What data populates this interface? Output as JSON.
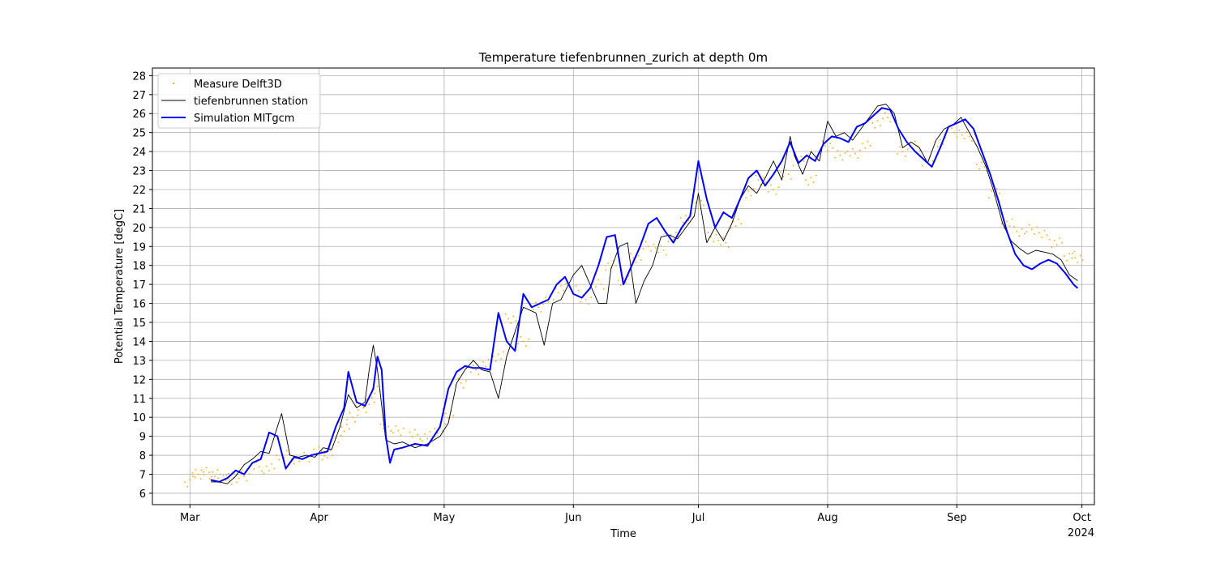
{
  "chart_data": {
    "type": "line",
    "title": "Temperature tiefenbrunnen_zurich at depth 0m",
    "xlabel": "Time",
    "ylabel": "Potential Temperature [degC]",
    "year_label": "2024",
    "x_range": [
      "2024-02-21",
      "2024-10-04"
    ],
    "ylim": [
      5.4,
      28.4
    ],
    "y_ticks": [
      6,
      7,
      8,
      9,
      10,
      11,
      12,
      13,
      14,
      15,
      16,
      17,
      18,
      19,
      20,
      21,
      22,
      23,
      24,
      25,
      26,
      27,
      28
    ],
    "x_ticks": [
      {
        "label": "Mar",
        "date": "2024-03-01"
      },
      {
        "label": "Apr",
        "date": "2024-04-01"
      },
      {
        "label": "May",
        "date": "2024-05-01"
      },
      {
        "label": "Jun",
        "date": "2024-06-01"
      },
      {
        "label": "Jul",
        "date": "2024-07-01"
      },
      {
        "label": "Aug",
        "date": "2024-08-01"
      },
      {
        "label": "Sep",
        "date": "2024-09-01"
      },
      {
        "label": "Oct",
        "date": "2024-10-01"
      }
    ],
    "grid": true,
    "legend_position": "top-left",
    "series": [
      {
        "name": "Measure Delft3D",
        "style": "points",
        "color": "#ffa500",
        "x": [
          "2024-03-01",
          "2024-03-03",
          "2024-03-05",
          "2024-03-07",
          "2024-03-09",
          "2024-03-11",
          "2024-03-14",
          "2024-03-17",
          "2024-03-20",
          "2024-03-23",
          "2024-03-26",
          "2024-03-29",
          "2024-04-01",
          "2024-04-03",
          "2024-04-05",
          "2024-04-07",
          "2024-04-09",
          "2024-04-11",
          "2024-04-13",
          "2024-04-15",
          "2024-04-17",
          "2024-04-20",
          "2024-04-24",
          "2024-04-27",
          "2024-04-30",
          "2024-05-02",
          "2024-05-05",
          "2024-05-08",
          "2024-05-11",
          "2024-05-14",
          "2024-05-17",
          "2024-05-20",
          "2024-05-23",
          "2024-05-26",
          "2024-05-29",
          "2024-06-01",
          "2024-06-04",
          "2024-06-07",
          "2024-06-10",
          "2024-06-13",
          "2024-06-16",
          "2024-06-19",
          "2024-06-22",
          "2024-06-25",
          "2024-06-28",
          "2024-07-01",
          "2024-07-04",
          "2024-07-07",
          "2024-07-10",
          "2024-07-13",
          "2024-07-16",
          "2024-07-19",
          "2024-07-22",
          "2024-07-25",
          "2024-07-28",
          "2024-08-01",
          "2024-08-04",
          "2024-08-07",
          "2024-08-10",
          "2024-08-13",
          "2024-08-16",
          "2024-08-19",
          "2024-08-22",
          "2024-08-25",
          "2024-08-28",
          "2024-09-01",
          "2024-09-04",
          "2024-09-07",
          "2024-09-10",
          "2024-09-13",
          "2024-09-16",
          "2024-09-19",
          "2024-09-22",
          "2024-09-25",
          "2024-09-28",
          "2024-09-30"
        ],
        "y": [
          6.95,
          7.0,
          7.1,
          7.0,
          6.8,
          6.7,
          6.9,
          7.4,
          7.3,
          8.0,
          7.8,
          7.9,
          8.2,
          8.0,
          8.8,
          9.5,
          10.0,
          10.5,
          10.8,
          11.5,
          9.4,
          9.3,
          9.1,
          9.0,
          9.4,
          10.2,
          11.8,
          12.5,
          12.8,
          13.2,
          15.2,
          14.0,
          15.8,
          16.2,
          16.8,
          16.8,
          16.2,
          17.0,
          18.0,
          17.2,
          18.4,
          19.0,
          18.8,
          19.5,
          20.5,
          21.3,
          19.5,
          19.2,
          20.2,
          21.8,
          22.5,
          22.0,
          22.8,
          23.5,
          22.5,
          24.3,
          23.8,
          23.9,
          24.3,
          25.5,
          25.8,
          24.0,
          24.3,
          23.5,
          24.5,
          25.0,
          24.8,
          23.2,
          21.8,
          20.2,
          19.8,
          19.9,
          19.6,
          19.2,
          18.5,
          18.4
        ]
      },
      {
        "name": "tiefenbrunnen station",
        "style": "line-thin",
        "color": "#000000",
        "x": [
          "2024-03-06",
          "2024-03-08",
          "2024-03-10",
          "2024-03-12",
          "2024-03-14",
          "2024-03-16",
          "2024-03-18",
          "2024-03-20",
          "2024-03-22",
          "2024-03-23",
          "2024-03-25",
          "2024-03-27",
          "2024-03-29",
          "2024-03-31",
          "2024-04-02",
          "2024-04-04",
          "2024-04-06",
          "2024-04-08",
          "2024-04-10",
          "2024-04-12",
          "2024-04-13",
          "2024-04-14",
          "2024-04-15",
          "2024-04-17",
          "2024-04-19",
          "2024-04-21",
          "2024-04-24",
          "2024-04-27",
          "2024-04-30",
          "2024-05-02",
          "2024-05-04",
          "2024-05-06",
          "2024-05-08",
          "2024-05-10",
          "2024-05-12",
          "2024-05-14",
          "2024-05-16",
          "2024-05-18",
          "2024-05-20",
          "2024-05-23",
          "2024-05-25",
          "2024-05-27",
          "2024-05-29",
          "2024-06-01",
          "2024-06-03",
          "2024-06-05",
          "2024-06-07",
          "2024-06-09",
          "2024-06-10",
          "2024-06-12",
          "2024-06-14",
          "2024-06-16",
          "2024-06-18",
          "2024-06-20",
          "2024-06-22",
          "2024-06-24",
          "2024-06-26",
          "2024-06-28",
          "2024-06-30",
          "2024-07-01",
          "2024-07-03",
          "2024-07-05",
          "2024-07-07",
          "2024-07-09",
          "2024-07-11",
          "2024-07-13",
          "2024-07-15",
          "2024-07-17",
          "2024-07-19",
          "2024-07-21",
          "2024-07-23",
          "2024-07-24",
          "2024-07-26",
          "2024-07-28",
          "2024-07-30",
          "2024-08-01",
          "2024-08-03",
          "2024-08-05",
          "2024-08-07",
          "2024-08-09",
          "2024-08-11",
          "2024-08-13",
          "2024-08-15",
          "2024-08-17",
          "2024-08-19",
          "2024-08-21",
          "2024-08-23",
          "2024-08-25",
          "2024-08-27",
          "2024-08-29",
          "2024-08-31",
          "2024-09-02",
          "2024-09-04",
          "2024-09-06",
          "2024-09-08",
          "2024-09-10",
          "2024-09-12",
          "2024-09-14",
          "2024-09-16",
          "2024-09-18",
          "2024-09-20",
          "2024-09-22",
          "2024-09-24",
          "2024-09-26",
          "2024-09-28",
          "2024-09-30"
        ],
        "y": [
          6.6,
          6.6,
          6.5,
          6.9,
          7.5,
          7.8,
          8.2,
          8.1,
          9.5,
          10.2,
          8.0,
          7.9,
          8.0,
          7.9,
          8.4,
          8.3,
          9.5,
          11.2,
          10.5,
          10.8,
          12.5,
          13.8,
          12.5,
          8.8,
          8.6,
          8.7,
          8.4,
          8.6,
          9.0,
          9.7,
          11.8,
          12.5,
          13.0,
          12.5,
          12.4,
          11.0,
          13.2,
          14.5,
          15.8,
          15.5,
          13.8,
          16.0,
          16.2,
          17.5,
          18.0,
          17.0,
          16.0,
          16.0,
          17.8,
          19.0,
          19.2,
          16.0,
          17.2,
          18.0,
          19.5,
          19.6,
          19.4,
          20.0,
          20.6,
          21.8,
          19.2,
          20.0,
          19.3,
          20.2,
          21.5,
          22.2,
          21.8,
          22.6,
          23.5,
          22.5,
          24.8,
          23.8,
          22.8,
          24.0,
          23.5,
          25.6,
          24.8,
          25.0,
          24.6,
          25.2,
          25.8,
          26.4,
          26.5,
          26.0,
          24.2,
          24.5,
          24.2,
          23.4,
          24.6,
          25.2,
          25.4,
          25.8,
          25.0,
          24.2,
          23.2,
          21.8,
          20.2,
          19.3,
          18.9,
          18.6,
          18.8,
          18.7,
          18.6,
          18.3,
          17.5,
          17.2
        ]
      },
      {
        "name": "Simulation MITgcm",
        "style": "line-thick",
        "color": "#0000ff",
        "x": [
          "2024-03-06",
          "2024-03-08",
          "2024-03-10",
          "2024-03-12",
          "2024-03-14",
          "2024-03-16",
          "2024-03-18",
          "2024-03-20",
          "2024-03-22",
          "2024-03-24",
          "2024-03-26",
          "2024-03-28",
          "2024-03-30",
          "2024-04-01",
          "2024-04-03",
          "2024-04-05",
          "2024-04-07",
          "2024-04-08",
          "2024-04-10",
          "2024-04-12",
          "2024-04-14",
          "2024-04-15",
          "2024-04-16",
          "2024-04-17",
          "2024-04-18",
          "2024-04-19",
          "2024-04-21",
          "2024-04-24",
          "2024-04-27",
          "2024-04-30",
          "2024-05-02",
          "2024-05-04",
          "2024-05-06",
          "2024-05-08",
          "2024-05-10",
          "2024-05-12",
          "2024-05-14",
          "2024-05-16",
          "2024-05-18",
          "2024-05-20",
          "2024-05-22",
          "2024-05-24",
          "2024-05-26",
          "2024-05-28",
          "2024-05-30",
          "2024-06-01",
          "2024-06-03",
          "2024-06-05",
          "2024-06-07",
          "2024-06-09",
          "2024-06-11",
          "2024-06-13",
          "2024-06-15",
          "2024-06-17",
          "2024-06-19",
          "2024-06-21",
          "2024-06-23",
          "2024-06-25",
          "2024-06-27",
          "2024-06-29",
          "2024-07-01",
          "2024-07-03",
          "2024-07-05",
          "2024-07-07",
          "2024-07-09",
          "2024-07-11",
          "2024-07-13",
          "2024-07-15",
          "2024-07-17",
          "2024-07-19",
          "2024-07-21",
          "2024-07-23",
          "2024-07-25",
          "2024-07-27",
          "2024-07-29",
          "2024-07-31",
          "2024-08-02",
          "2024-08-04",
          "2024-08-06",
          "2024-08-08",
          "2024-08-10",
          "2024-08-12",
          "2024-08-14",
          "2024-08-16",
          "2024-08-18",
          "2024-08-20",
          "2024-08-22",
          "2024-08-24",
          "2024-08-26",
          "2024-08-28",
          "2024-08-30",
          "2024-09-01",
          "2024-09-03",
          "2024-09-05",
          "2024-09-07",
          "2024-09-09",
          "2024-09-11",
          "2024-09-13",
          "2024-09-15",
          "2024-09-17",
          "2024-09-19",
          "2024-09-21",
          "2024-09-23",
          "2024-09-25",
          "2024-09-27",
          "2024-09-29",
          "2024-09-30"
        ],
        "y": [
          6.7,
          6.6,
          6.8,
          7.2,
          7.0,
          7.6,
          7.8,
          9.2,
          9.0,
          7.3,
          7.9,
          7.8,
          8.0,
          8.1,
          8.2,
          9.5,
          10.5,
          12.4,
          10.8,
          10.6,
          11.5,
          13.2,
          12.5,
          9.0,
          7.6,
          8.3,
          8.4,
          8.6,
          8.5,
          9.5,
          11.5,
          12.4,
          12.7,
          12.6,
          12.6,
          12.5,
          15.5,
          14.0,
          13.5,
          16.5,
          15.8,
          16.0,
          16.2,
          17.0,
          17.4,
          16.5,
          16.3,
          16.8,
          18.0,
          19.5,
          19.6,
          17.0,
          18.0,
          19.0,
          20.2,
          20.5,
          19.8,
          19.2,
          20.0,
          20.6,
          23.5,
          21.5,
          20.0,
          20.8,
          20.5,
          21.5,
          22.6,
          23.0,
          22.2,
          22.8,
          23.5,
          24.5,
          23.4,
          23.8,
          23.5,
          24.4,
          24.8,
          24.7,
          24.5,
          25.3,
          25.5,
          25.9,
          26.3,
          26.2,
          25.2,
          24.5,
          24.0,
          23.6,
          23.2,
          24.2,
          25.3,
          25.5,
          25.7,
          25.2,
          24.0,
          22.8,
          21.4,
          19.8,
          18.6,
          18.0,
          17.8,
          18.1,
          18.3,
          18.1,
          17.6,
          17.0,
          16.8
        ]
      }
    ]
  }
}
